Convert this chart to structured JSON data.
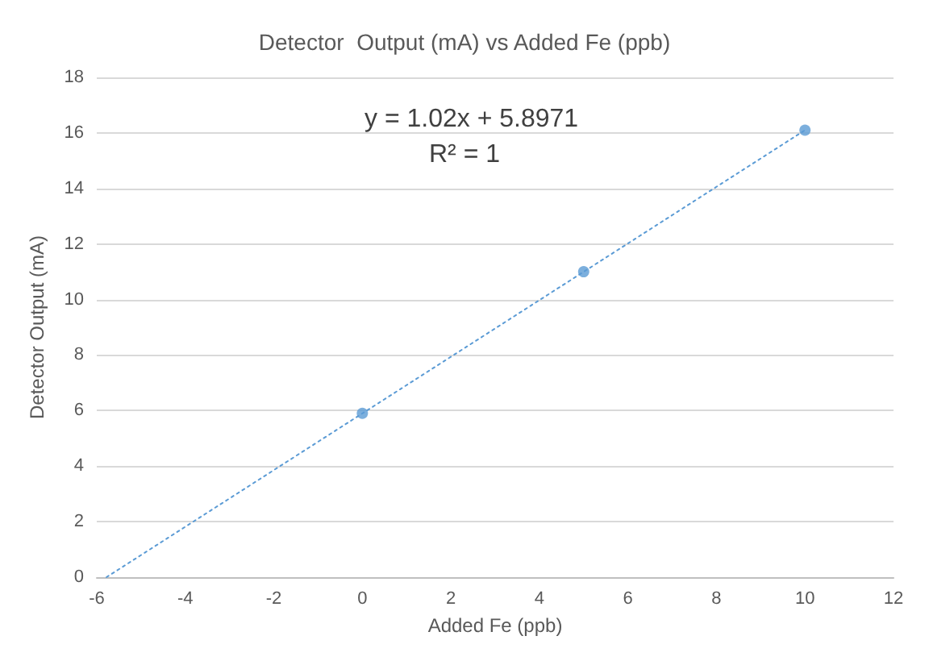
{
  "chart_data": {
    "type": "scatter",
    "title": "Detector  Output (mA) vs Added Fe (ppb)",
    "xlabel": "Added Fe (ppb)",
    "ylabel": "Detector Output (mA)",
    "x": [
      0,
      5,
      10
    ],
    "series": [
      {
        "color": "#5b9bd5",
        "values": [
          5.9,
          11.0,
          16.1
        ],
        "marker": "circle"
      },
      {
        "type": "line",
        "color": "#5b9bd5",
        "x": [
          -5.78,
          10
        ],
        "values": [
          0,
          16.1
        ],
        "line_style": "dotted",
        "marker": "none"
      }
    ],
    "annotations": [
      "y = 1.02x + 5.8971",
      "R² = 1"
    ],
    "xlim": [
      -6,
      12
    ],
    "xticks": [
      -6,
      -4,
      -2,
      0,
      2,
      4,
      6,
      8,
      10,
      12
    ],
    "ylim": [
      0,
      18
    ],
    "yticks": [
      0,
      2,
      4,
      6,
      8,
      10,
      12,
      14,
      16,
      18
    ],
    "grid": "y"
  }
}
